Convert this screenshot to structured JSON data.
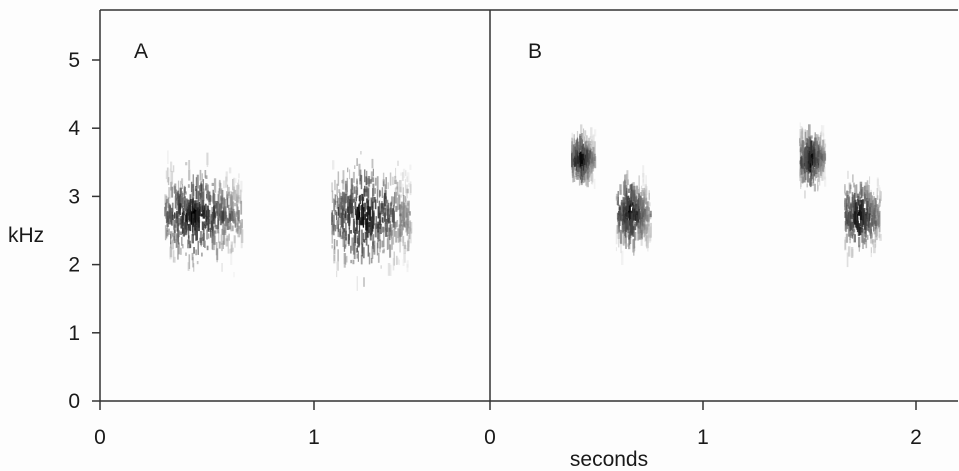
{
  "chart_data": {
    "type": "spectrogram",
    "ylabel": "kHz",
    "xlabel": "seconds",
    "ylim": [
      0,
      5.7
    ],
    "yticks": [
      "0",
      "1",
      "2",
      "3",
      "4",
      "5"
    ],
    "panels": [
      {
        "label": "A",
        "xlim": [
          0,
          1.75
        ],
        "xticks": [
          "0",
          "1"
        ],
        "calls": [
          {
            "start": 0.3,
            "end": 0.66,
            "fmin": 1.5,
            "fmax": 3.8,
            "peak_freq": 2.7
          },
          {
            "start": 1.08,
            "end": 1.45,
            "fmin": 1.35,
            "fmax": 4.0,
            "peak_freq": 2.7
          }
        ]
      },
      {
        "label": "B",
        "xlim": [
          0,
          2.2
        ],
        "xticks": [
          "0",
          "1",
          "2"
        ],
        "calls": [
          {
            "start": 0.38,
            "end": 0.49,
            "fmin": 2.85,
            "fmax": 4.05,
            "peak_freq": 3.55
          },
          {
            "start": 0.59,
            "end": 0.75,
            "fmin": 2.05,
            "fmax": 3.8,
            "peak_freq": 2.75
          },
          {
            "start": 1.45,
            "end": 1.57,
            "fmin": 2.7,
            "fmax": 4.15,
            "peak_freq": 3.55
          },
          {
            "start": 1.66,
            "end": 1.83,
            "fmin": 1.95,
            "fmax": 3.85,
            "peak_freq": 2.7
          }
        ]
      }
    ],
    "colors": {
      "frame": "#333333",
      "ink": "#101010",
      "background": "#fdfdfd"
    }
  }
}
